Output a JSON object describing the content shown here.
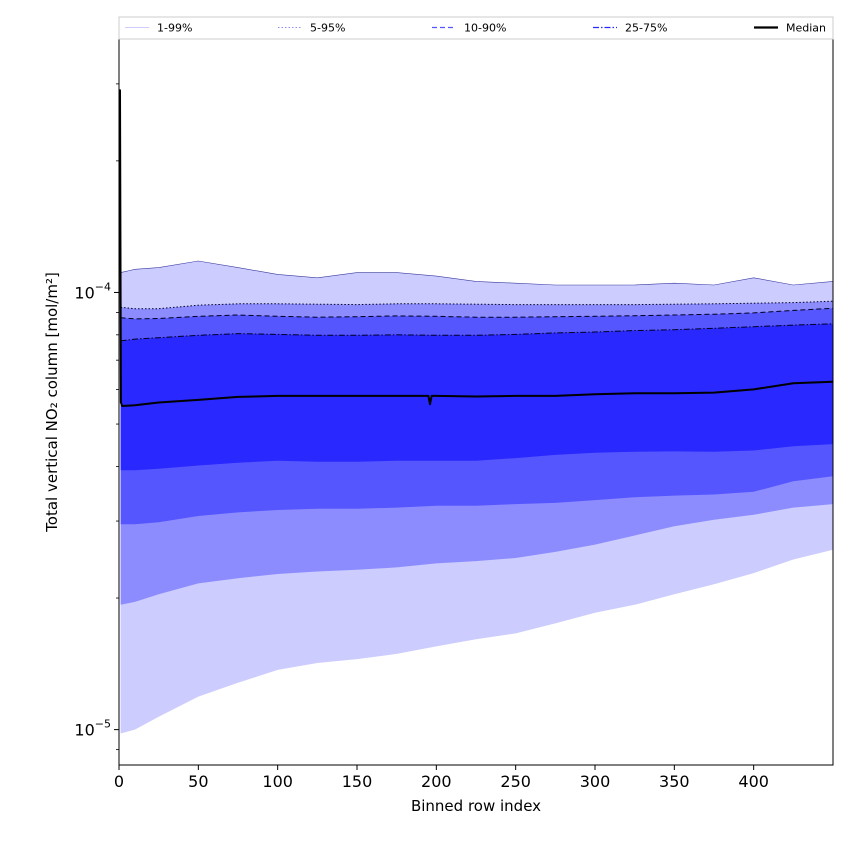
{
  "chart_data": {
    "type": "area",
    "xlabel": "Binned row index",
    "ylabel": "Total vertical NO₂ column [mol/m²]",
    "xlim": [
      0,
      450
    ],
    "ylim": [
      8.3e-06,
      0.00038
    ],
    "yscale": "log",
    "x_ticks": [
      0,
      50,
      100,
      150,
      200,
      250,
      300,
      350,
      400
    ],
    "y_ticks": [
      {
        "value": 1e-05,
        "mantissa": "10",
        "exponent": "−5"
      },
      {
        "value": 0.0001,
        "mantissa": "10",
        "exponent": "−4"
      }
    ],
    "legend_position": "top",
    "x": [
      1,
      10,
      25,
      50,
      75,
      100,
      125,
      150,
      175,
      200,
      225,
      250,
      275,
      300,
      325,
      350,
      375,
      400,
      425,
      450
    ],
    "bands": [
      {
        "name": "1-99%",
        "color": "#ccccff",
        "lower": [
          9.8e-06,
          1e-05,
          1.07e-05,
          1.19e-05,
          1.28e-05,
          1.37e-05,
          1.42e-05,
          1.45e-05,
          1.49e-05,
          1.55e-05,
          1.61e-05,
          1.66e-05,
          1.75e-05,
          1.85e-05,
          1.93e-05,
          2.04e-05,
          2.15e-05,
          2.28e-05,
          2.45e-05,
          2.58e-05
        ],
        "upper": [
          0.000111,
          0.000113,
          0.000114,
          0.000118,
          0.000114,
          0.00011,
          0.000108,
          0.000111,
          0.000111,
          0.000109,
          0.000106,
          0.000105,
          0.000104,
          0.000104,
          0.000104,
          0.000105,
          0.000104,
          0.000108,
          0.000104,
          0.000106
        ]
      },
      {
        "name": "5-95%",
        "color": "#8c8cff",
        "lower": [
          1.93e-05,
          1.96e-05,
          2.04e-05,
          2.16e-05,
          2.22e-05,
          2.27e-05,
          2.3e-05,
          2.32e-05,
          2.35e-05,
          2.4e-05,
          2.43e-05,
          2.47e-05,
          2.55e-05,
          2.65e-05,
          2.78e-05,
          2.92e-05,
          3.02e-05,
          3.1e-05,
          3.22e-05,
          3.28e-05
        ],
        "upper": [
          9.25e-05,
          9.18e-05,
          9.18e-05,
          9.35e-05,
          9.42e-05,
          9.42e-05,
          9.4e-05,
          9.38e-05,
          9.42e-05,
          9.42e-05,
          9.4e-05,
          9.38e-05,
          9.38e-05,
          9.38e-05,
          9.38e-05,
          9.4e-05,
          9.42e-05,
          9.45e-05,
          9.48e-05,
          9.55e-05
        ]
      },
      {
        "name": "10-90%",
        "color": "#5656ff",
        "lower": [
          2.95e-05,
          2.95e-05,
          2.98e-05,
          3.08e-05,
          3.14e-05,
          3.18e-05,
          3.2e-05,
          3.2e-05,
          3.22e-05,
          3.25e-05,
          3.25e-05,
          3.28e-05,
          3.3e-05,
          3.35e-05,
          3.4e-05,
          3.43e-05,
          3.45e-05,
          3.5e-05,
          3.7e-05,
          3.8e-05
        ],
        "upper": [
          8.75e-05,
          8.7e-05,
          8.72e-05,
          8.82e-05,
          8.88e-05,
          8.82e-05,
          8.78e-05,
          8.8e-05,
          8.84e-05,
          8.82e-05,
          8.78e-05,
          8.78e-05,
          8.8e-05,
          8.82e-05,
          8.85e-05,
          8.88e-05,
          8.92e-05,
          8.98e-05,
          9.1e-05,
          9.2e-05
        ]
      },
      {
        "name": "25-75%",
        "color": "#2828ff",
        "lower": [
          3.92e-05,
          3.92e-05,
          3.95e-05,
          4.02e-05,
          4.08e-05,
          4.12e-05,
          4.1e-05,
          4.1e-05,
          4.12e-05,
          4.12e-05,
          4.12e-05,
          4.18e-05,
          4.25e-05,
          4.3e-05,
          4.32e-05,
          4.33e-05,
          4.32e-05,
          4.35e-05,
          4.45e-05,
          4.5e-05
        ],
        "upper": [
          7.75e-05,
          7.82e-05,
          7.88e-05,
          7.98e-05,
          8.05e-05,
          8.02e-05,
          7.98e-05,
          7.98e-05,
          8e-05,
          7.98e-05,
          7.98e-05,
          8.02e-05,
          8.08e-05,
          8.12e-05,
          8.18e-05,
          8.22e-05,
          8.28e-05,
          8.35e-05,
          8.42e-05,
          8.48e-05
        ]
      }
    ],
    "median": {
      "name": "Median",
      "color": "#000000",
      "x": [
        0,
        0.6,
        1.2,
        2,
        10,
        25,
        50,
        75,
        100,
        125,
        150,
        175,
        195,
        196,
        197,
        200,
        225,
        250,
        275,
        300,
        325,
        350,
        375,
        400,
        425,
        450
      ],
      "y": [
        0.00029,
        0.00029,
        5.6e-05,
        5.5e-05,
        5.52e-05,
        5.6e-05,
        5.68e-05,
        5.77e-05,
        5.8e-05,
        5.8e-05,
        5.8e-05,
        5.8e-05,
        5.8e-05,
        5.55e-05,
        5.8e-05,
        5.8e-05,
        5.78e-05,
        5.8e-05,
        5.8e-05,
        5.85e-05,
        5.88e-05,
        5.88e-05,
        5.9e-05,
        6e-05,
        6.2e-05,
        6.25e-05
      ]
    },
    "legend": [
      {
        "label": "1-99%",
        "color": "#ccccff",
        "dash": "solid",
        "width": 1
      },
      {
        "label": "5-95%",
        "color": "#8c8cff",
        "dash": "dotted",
        "width": 1
      },
      {
        "label": "10-90%",
        "color": "#5656ff",
        "dash": "dashed",
        "width": 1.3
      },
      {
        "label": "25-75%",
        "color": "#2828ff",
        "dash": "dashdot",
        "width": 1.3
      },
      {
        "label": "Median",
        "color": "#000000",
        "dash": "solid",
        "width": 2.2
      }
    ]
  }
}
